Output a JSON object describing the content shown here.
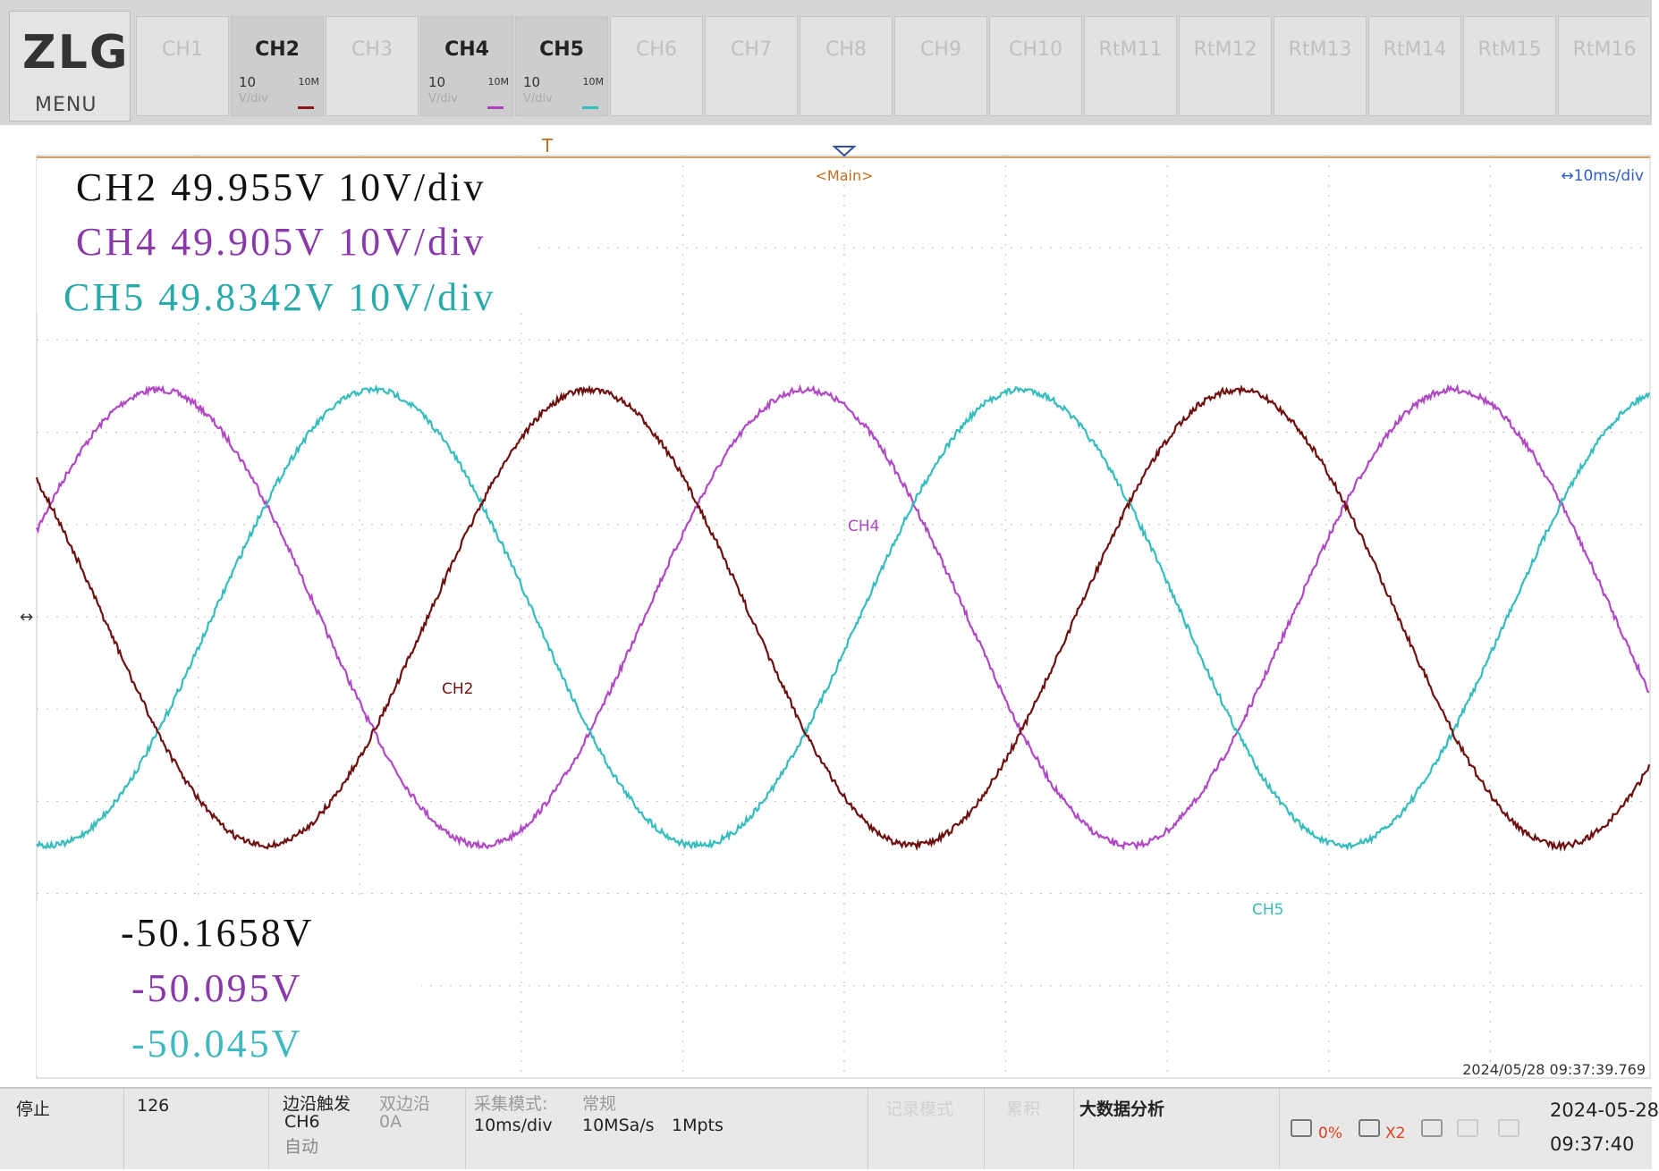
{
  "logo": {
    "brand": "ZLG",
    "menu": "MENU"
  },
  "channels": [
    {
      "label": "CH1"
    },
    {
      "label": "CH2",
      "scale": "10",
      "bandwidth": "10M",
      "unit": "V/div",
      "color": "#8b1a1a"
    },
    {
      "label": "CH3"
    },
    {
      "label": "CH4",
      "scale": "10",
      "bandwidth": "10M",
      "unit": "V/div",
      "color": "#b040c0"
    },
    {
      "label": "CH5",
      "scale": "10",
      "bandwidth": "10M",
      "unit": "V/div",
      "color": "#30c0c0"
    },
    {
      "label": "CH6"
    },
    {
      "label": "CH7"
    },
    {
      "label": "CH8"
    },
    {
      "label": "CH9"
    },
    {
      "label": "CH10"
    },
    {
      "label": "RtM11"
    },
    {
      "label": "RtM12"
    },
    {
      "label": "RtM13"
    },
    {
      "label": "RtM14"
    },
    {
      "label": "RtM15"
    },
    {
      "label": "RtM16"
    }
  ],
  "plot": {
    "trigger_marker": "T",
    "timebase_ref": "<Main>",
    "timebase": "↔10ms/div",
    "max_readouts": [
      {
        "text": "CH2 49.955V 10V/div",
        "color": "#111111"
      },
      {
        "text": "CH4 49.905V 10V/div",
        "color": "#8a3aa8"
      },
      {
        "text": "CH5 49.8342V 10V/div",
        "color": "#28aaaa"
      }
    ],
    "min_readouts": [
      {
        "text": "-50.1658V",
        "color": "#111111"
      },
      {
        "text": "-50.095V",
        "color": "#8a3aa8"
      },
      {
        "text": "-50.045V",
        "color": "#40b8c0"
      }
    ],
    "traces": [
      {
        "label": "CH4",
        "color": "#b048c4"
      },
      {
        "label": "CH5",
        "color": "#36bcbc"
      },
      {
        "label": "CH2",
        "color": "#6e1010"
      }
    ],
    "timestamp": "2024/05/28 09:37:39.769"
  },
  "status": {
    "state": "停止",
    "count": "126",
    "trigger_type": "边沿触发",
    "trigger_source": "CH6",
    "trigger_mode": "自动",
    "edge": "双边沿",
    "level": "0A",
    "acq_label": "采集模式:",
    "acq_timebase": "10ms/div",
    "acq_mode": "常规",
    "sample_rate": "10MSa/s",
    "depth": "1Mpts",
    "record_mode": "记录模式",
    "accumulate": "累积",
    "big_data": "大数据分析",
    "cpu": "0%",
    "zoom": "X2",
    "date": "2024-05-28",
    "time": "09:37:40"
  }
}
